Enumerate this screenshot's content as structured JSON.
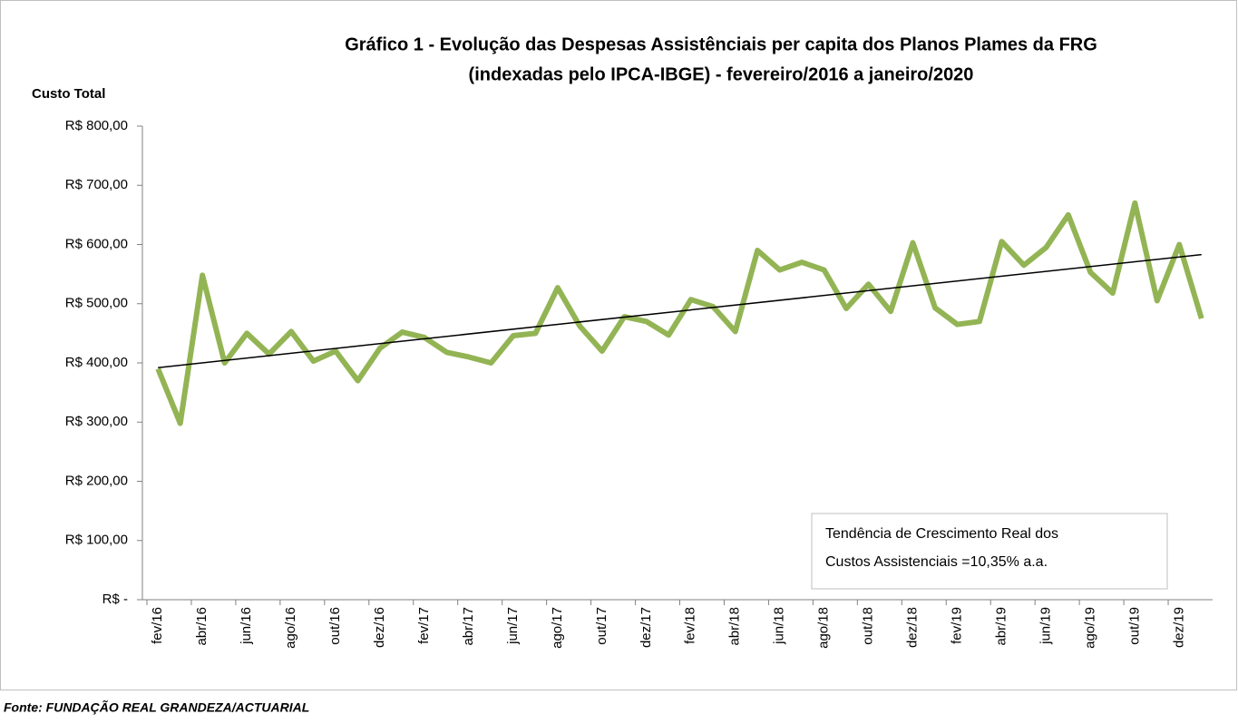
{
  "chart_data": {
    "type": "line",
    "title": [
      "Gráfico 1 - Evolução das Despesas Assistênciais per capita dos Planos Plames da FRG",
      "(indexadas pelo IPCA-IBGE) - fevereiro/2016 a janeiro/2020"
    ],
    "y_label": "Custo Total",
    "annotation": [
      "Tendência de Crescimento Real dos",
      "Custos Assistenciais =10,35% a.a."
    ],
    "source": "Fonte: FUNDAÇÃO REAL GRANDEZA/ACTUARIAL",
    "categories": [
      "fev/16",
      null,
      "abr/16",
      null,
      "jun/16",
      null,
      "ago/16",
      null,
      "out/16",
      null,
      "dez/16",
      null,
      "fev/17",
      null,
      "abr/17",
      null,
      "jun/17",
      null,
      "ago/17",
      null,
      "out/17",
      null,
      "dez/17",
      null,
      "fev/18",
      null,
      "abr/18",
      null,
      "jun/18",
      null,
      "ago/18",
      null,
      "out/18",
      null,
      "dez/18",
      null,
      "fev/19",
      null,
      "abr/19",
      null,
      "jun/19",
      null,
      "ago/19",
      null,
      "out/19",
      null,
      "dez/19",
      null
    ],
    "series": [
      {
        "color": "#93b454",
        "values": [
          390,
          298,
          548,
          400,
          450,
          415,
          453,
          403,
          420,
          370,
          425,
          452,
          443,
          418,
          410,
          400,
          446,
          450,
          527,
          462,
          420,
          478,
          470,
          447,
          507,
          495,
          453,
          590,
          557,
          570,
          557,
          492,
          533,
          487,
          603,
          493,
          465,
          470,
          605,
          565,
          595,
          650,
          553,
          518,
          670,
          505,
          600,
          475
        ]
      }
    ],
    "trendline": {
      "color": "#000000",
      "values": [
        392,
        583
      ]
    },
    "ylim": [
      0,
      800
    ],
    "yticks": [
      {
        "value": 0,
        "label": "R$ -"
      },
      {
        "value": 100,
        "label": "R$ 100,00"
      },
      {
        "value": 200,
        "label": "R$ 200,00"
      },
      {
        "value": 300,
        "label": "R$ 300,00"
      },
      {
        "value": 400,
        "label": "R$ 400,00"
      },
      {
        "value": 500,
        "label": "R$ 500,00"
      },
      {
        "value": 600,
        "label": "R$ 600,00"
      },
      {
        "value": 700,
        "label": "R$ 700,00"
      },
      {
        "value": 800,
        "label": "R$ 800,00"
      }
    ]
  }
}
